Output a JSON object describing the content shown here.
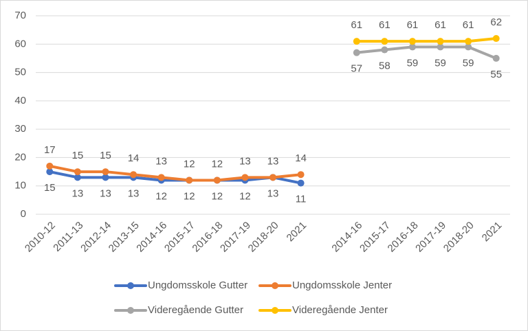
{
  "chart_data": {
    "type": "line",
    "categories": [
      "2010-12",
      "2011-13",
      "2012-14",
      "2013-15",
      "2014-16",
      "2015-17",
      "2016-18",
      "2017-19",
      "2018-20",
      "2021",
      null,
      "2014-16",
      "2015-17",
      "2016-18",
      "2017-19",
      "2018-20",
      "2021"
    ],
    "series": [
      {
        "name": "Ungdomsskole Gutter",
        "color": "#4472c4",
        "values": [
          15,
          13,
          13,
          13,
          12,
          12,
          12,
          12,
          13,
          11,
          null,
          null,
          null,
          null,
          null,
          null,
          null
        ]
      },
      {
        "name": "Ungdomsskole Jenter",
        "color": "#ed7d31",
        "values": [
          17,
          15,
          15,
          14,
          13,
          12,
          12,
          13,
          13,
          14,
          null,
          null,
          null,
          null,
          null,
          null,
          null
        ]
      },
      {
        "name": "Videregående Gutter",
        "color": "#a5a5a5",
        "values": [
          null,
          null,
          null,
          null,
          null,
          null,
          null,
          null,
          null,
          null,
          null,
          57,
          58,
          59,
          59,
          59,
          55
        ]
      },
      {
        "name": "Videregående Jenter",
        "color": "#ffc000",
        "values": [
          null,
          null,
          null,
          null,
          null,
          null,
          null,
          null,
          null,
          null,
          null,
          61,
          61,
          61,
          61,
          61,
          62
        ]
      }
    ],
    "ylim": [
      0,
      70
    ],
    "yticks": [
      0,
      10,
      20,
      30,
      40,
      50,
      60,
      70
    ],
    "grid": true
  }
}
